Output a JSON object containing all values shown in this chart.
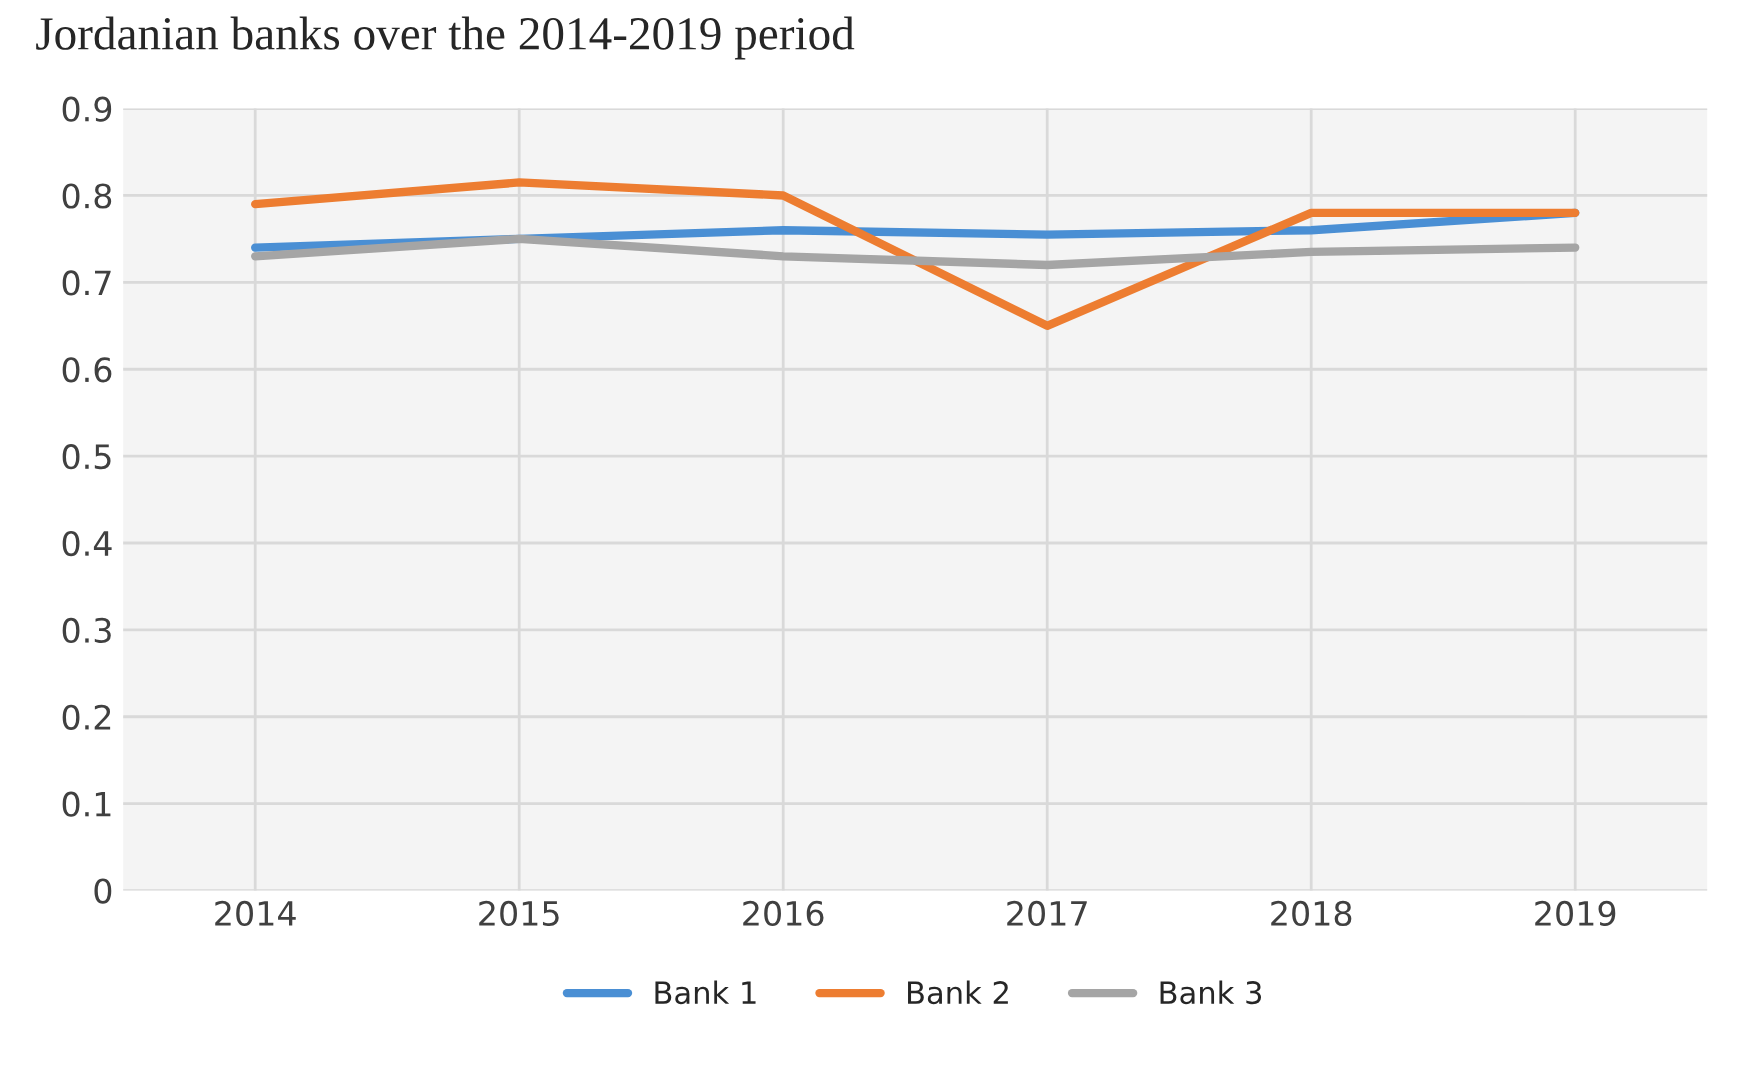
{
  "chart_data": {
    "type": "line",
    "title": "Jordanian banks over the 2014-2019 period",
    "categories": [
      "2014",
      "2015",
      "2016",
      "2017",
      "2018",
      "2019"
    ],
    "series": [
      {
        "name": "Bank 1",
        "color": "#4a8fd4",
        "values": [
          0.74,
          0.75,
          0.76,
          0.755,
          0.76,
          0.78
        ]
      },
      {
        "name": "Bank 2",
        "color": "#ed7d31",
        "values": [
          0.79,
          0.815,
          0.8,
          0.65,
          0.78,
          0.78
        ]
      },
      {
        "name": "Bank 3",
        "color": "#a5a5a5",
        "values": [
          0.73,
          0.75,
          0.73,
          0.72,
          0.735,
          0.74
        ]
      }
    ],
    "ylim": [
      0,
      0.9
    ],
    "yticks": [
      {
        "value": 0,
        "label": "0"
      },
      0.1,
      0.2,
      0.3,
      0.4,
      0.5,
      0.6,
      0.7,
      0.8,
      0.9
    ],
    "grid": true,
    "legend": "bottom",
    "marker": "none",
    "line_style": "solid"
  }
}
